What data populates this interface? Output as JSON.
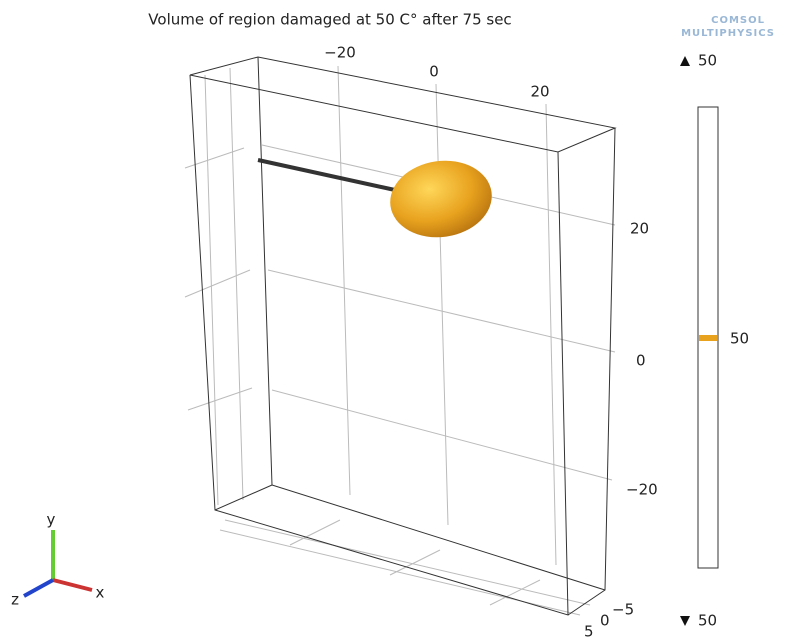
{
  "title": "Volume of region damaged at 50 C° after 75 sec",
  "logo": {
    "line1": "COMSOL",
    "line2": "MULTIPHYSICS"
  },
  "top_axis_labels": [
    "−20",
    "0",
    "20"
  ],
  "right_axis_labels": [
    "20",
    "0",
    "−20"
  ],
  "depth_axis_labels": [
    "−5",
    "0",
    "5"
  ],
  "colorbar": {
    "max": "50",
    "mid": "50",
    "min": "50"
  },
  "triad": {
    "y": "y",
    "z": "z",
    "x": "x"
  }
}
